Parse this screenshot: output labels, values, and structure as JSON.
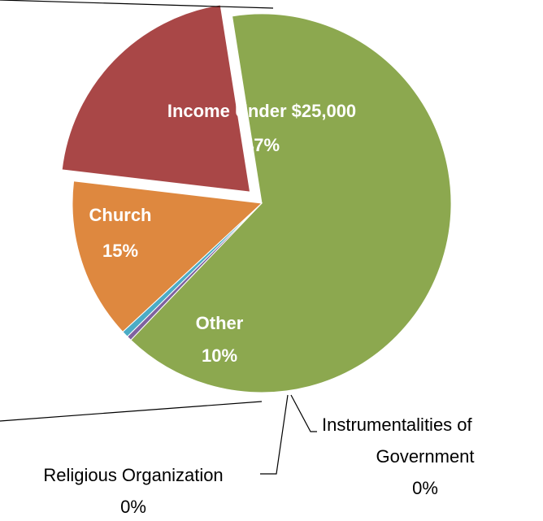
{
  "chart_data": {
    "type": "pie",
    "title": "",
    "slices": [
      {
        "label": "Income Under $25,000",
        "percent_label": "47%",
        "value": 47,
        "color": "#8CA84F",
        "exploded": false,
        "label_style": "inside"
      },
      {
        "label": "Instrumentalities of Government",
        "percent_label": "0%",
        "value": 0.3,
        "color": "#7F62A0",
        "exploded": false,
        "label_style": "outside"
      },
      {
        "label": "Religious Organization",
        "percent_label": "0%",
        "value": 0.4,
        "color": "#4BACC6",
        "exploded": false,
        "label_style": "outside"
      },
      {
        "label": "Other",
        "percent_label": "10%",
        "value": 10,
        "color": "#DE883F",
        "exploded": false,
        "label_style": "inside"
      },
      {
        "label": "Church",
        "percent_label": "15%",
        "value": 15,
        "color": "#A94747",
        "exploded": true,
        "label_style": "inside"
      }
    ],
    "start_angle_deg": -9,
    "legend": "none",
    "clipped_labels": [
      "top-left",
      "bottom-left"
    ]
  }
}
